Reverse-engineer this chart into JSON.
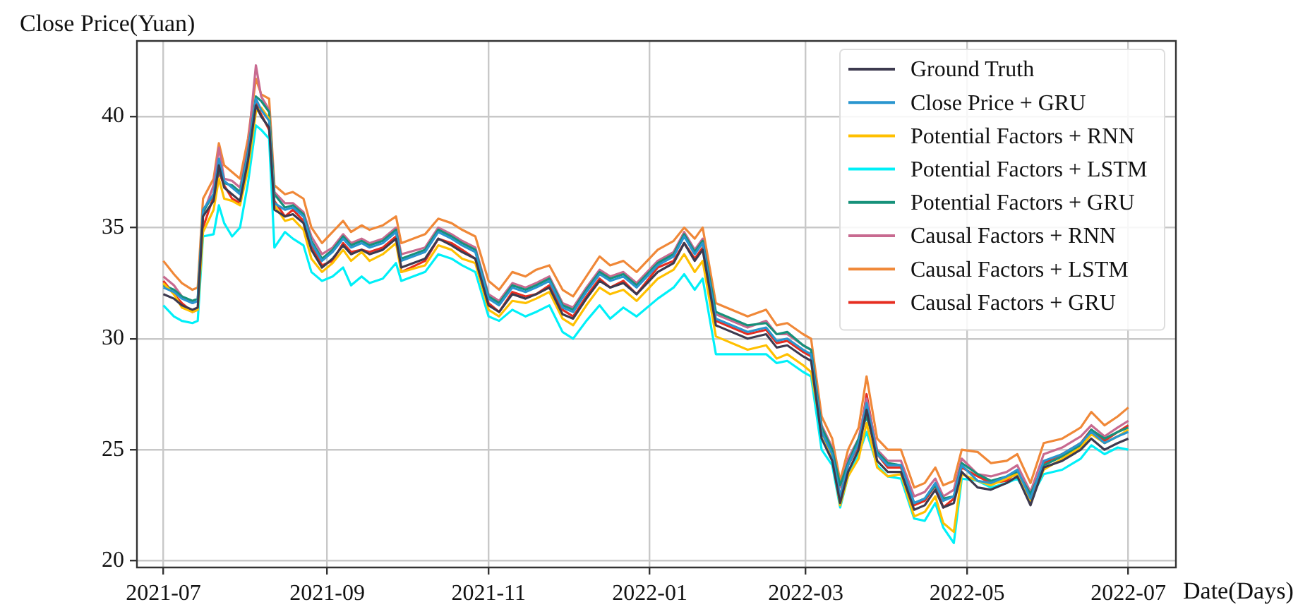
{
  "chart_data": {
    "type": "line",
    "xlabel": "Date(Days)",
    "ylabel": "Close Price(Yuan)",
    "x": [
      "2021-07-01",
      "2021-07-05",
      "2021-07-08",
      "2021-07-12",
      "2021-07-14",
      "2021-07-16",
      "2021-07-20",
      "2021-07-22",
      "2021-07-24",
      "2021-07-27",
      "2021-07-30",
      "2021-08-02",
      "2021-08-05",
      "2021-08-07",
      "2021-08-10",
      "2021-08-12",
      "2021-08-16",
      "2021-08-19",
      "2021-08-23",
      "2021-08-26",
      "2021-08-30",
      "2021-09-03",
      "2021-09-07",
      "2021-09-10",
      "2021-09-14",
      "2021-09-17",
      "2021-09-22",
      "2021-09-27",
      "2021-09-29",
      "2021-10-08",
      "2021-10-13",
      "2021-10-18",
      "2021-10-22",
      "2021-10-27",
      "2021-11-01",
      "2021-11-05",
      "2021-11-10",
      "2021-11-15",
      "2021-11-19",
      "2021-11-24",
      "2021-11-29",
      "2021-12-03",
      "2021-12-08",
      "2021-12-13",
      "2021-12-17",
      "2021-12-22",
      "2021-12-27",
      "2022-01-04",
      "2022-01-10",
      "2022-01-14",
      "2022-01-18",
      "2022-01-21",
      "2022-01-26",
      "2022-02-07",
      "2022-02-14",
      "2022-02-18",
      "2022-02-22",
      "2022-02-28",
      "2022-03-03",
      "2022-03-07",
      "2022-03-11",
      "2022-03-14",
      "2022-03-17",
      "2022-03-21",
      "2022-03-24",
      "2022-03-28",
      "2022-04-01",
      "2022-04-06",
      "2022-04-11",
      "2022-04-15",
      "2022-04-19",
      "2022-04-22",
      "2022-04-26",
      "2022-04-29",
      "2022-05-05",
      "2022-05-10",
      "2022-05-16",
      "2022-05-20",
      "2022-05-25",
      "2022-05-30",
      "2022-06-06",
      "2022-06-13",
      "2022-06-17",
      "2022-06-22",
      "2022-06-27",
      "2022-07-01"
    ],
    "series": [
      {
        "name": "Ground Truth",
        "color": "#3d3a4f",
        "values": [
          32.0,
          31.8,
          31.5,
          31.3,
          31.4,
          35.5,
          36.2,
          37.8,
          36.8,
          36.5,
          36.2,
          38.0,
          40.5,
          40.0,
          39.5,
          35.8,
          35.5,
          35.6,
          35.2,
          34.0,
          33.2,
          33.6,
          34.2,
          33.8,
          34.0,
          33.8,
          34.0,
          34.5,
          33.2,
          33.6,
          34.5,
          34.2,
          33.9,
          33.6,
          31.5,
          31.2,
          32.0,
          31.8,
          32.0,
          32.3,
          31.1,
          30.9,
          31.8,
          32.6,
          32.3,
          32.5,
          32.0,
          33.0,
          33.4,
          34.3,
          33.5,
          34.0,
          30.6,
          30.0,
          30.2,
          29.6,
          29.7,
          29.2,
          29.0,
          25.5,
          24.5,
          22.6,
          24.0,
          25.0,
          26.8,
          24.5,
          24.0,
          24.0,
          22.3,
          22.5,
          23.2,
          22.4,
          22.6,
          24.0,
          23.3,
          23.2,
          23.5,
          23.8,
          22.5,
          24.2,
          24.5,
          25.0,
          25.5,
          25.0,
          25.3,
          25.5
        ]
      },
      {
        "name": "Close Price + GRU",
        "color": "#2a96cf",
        "values": [
          32.3,
          32.1,
          31.8,
          31.6,
          31.7,
          35.8,
          36.5,
          38.1,
          37.1,
          36.8,
          36.5,
          38.3,
          40.8,
          40.3,
          39.8,
          36.1,
          35.8,
          35.9,
          35.5,
          34.3,
          33.5,
          33.9,
          34.5,
          34.1,
          34.3,
          34.1,
          34.3,
          34.8,
          33.5,
          33.9,
          34.8,
          34.5,
          34.2,
          33.9,
          31.8,
          31.5,
          32.3,
          32.1,
          32.3,
          32.6,
          31.4,
          31.2,
          32.1,
          32.9,
          32.6,
          32.8,
          32.3,
          33.3,
          33.7,
          34.6,
          33.8,
          34.3,
          30.9,
          30.3,
          30.5,
          29.9,
          30.0,
          29.5,
          29.3,
          25.8,
          24.8,
          22.9,
          24.3,
          25.3,
          27.1,
          24.8,
          24.3,
          24.3,
          22.6,
          22.8,
          23.5,
          22.7,
          22.9,
          24.3,
          23.6,
          23.5,
          23.8,
          24.1,
          22.8,
          24.5,
          24.8,
          25.3,
          25.8,
          25.3,
          25.6,
          25.8
        ]
      },
      {
        "name": "Potential Factors + RNN",
        "color": "#ffc000",
        "values": [
          32.5,
          32.0,
          31.4,
          31.2,
          31.3,
          34.8,
          35.8,
          37.2,
          36.3,
          36.2,
          36.0,
          37.6,
          40.2,
          40.4,
          39.9,
          36.0,
          35.3,
          35.4,
          34.9,
          33.6,
          33.0,
          33.4,
          34.0,
          33.5,
          33.9,
          33.5,
          33.8,
          34.3,
          33.0,
          33.3,
          34.2,
          34.0,
          33.6,
          33.4,
          31.3,
          31.0,
          31.7,
          31.6,
          31.8,
          32.1,
          30.9,
          30.6,
          31.5,
          32.3,
          32.0,
          32.2,
          31.7,
          32.7,
          33.1,
          33.8,
          33.0,
          33.5,
          30.1,
          29.5,
          29.7,
          29.1,
          29.3,
          28.8,
          28.5,
          25.8,
          24.6,
          22.5,
          23.8,
          24.6,
          26.2,
          24.2,
          23.8,
          23.9,
          22.0,
          22.2,
          22.9,
          21.7,
          21.3,
          23.9,
          23.6,
          23.4,
          23.7,
          23.9,
          22.7,
          24.1,
          24.6,
          25.1,
          25.7,
          25.3,
          25.6,
          25.9
        ]
      },
      {
        "name": "Potential Factors + LSTM",
        "color": "#00f0f8",
        "values": [
          31.5,
          31.0,
          30.8,
          30.7,
          30.8,
          34.6,
          34.7,
          36.0,
          35.2,
          34.6,
          35.0,
          37.0,
          39.6,
          39.4,
          39.0,
          34.1,
          34.8,
          34.5,
          34.2,
          33.0,
          32.6,
          32.8,
          33.2,
          32.4,
          32.8,
          32.5,
          32.7,
          33.4,
          32.6,
          33.0,
          33.8,
          33.6,
          33.3,
          33.0,
          31.0,
          30.8,
          31.3,
          31.0,
          31.2,
          31.5,
          30.3,
          30.0,
          30.8,
          31.5,
          30.9,
          31.4,
          31.0,
          31.8,
          32.3,
          32.9,
          32.2,
          32.7,
          29.3,
          29.3,
          29.3,
          28.9,
          29.0,
          28.5,
          28.3,
          25.0,
          24.3,
          22.4,
          23.8,
          24.8,
          25.8,
          24.3,
          23.8,
          23.7,
          21.9,
          21.8,
          22.6,
          21.5,
          20.8,
          23.7,
          23.6,
          23.3,
          23.5,
          23.7,
          22.8,
          23.9,
          24.1,
          24.6,
          25.2,
          24.8,
          25.1,
          25.0
        ]
      },
      {
        "name": "Potential Factors + GRU",
        "color": "#16917a",
        "values": [
          32.4,
          32.2,
          31.9,
          31.7,
          31.8,
          35.7,
          36.5,
          37.6,
          37.0,
          36.9,
          36.6,
          38.4,
          40.9,
          40.7,
          40.2,
          36.5,
          35.9,
          36.0,
          35.6,
          34.4,
          33.6,
          34.0,
          34.6,
          34.2,
          34.4,
          34.2,
          34.4,
          34.9,
          33.6,
          34.0,
          34.9,
          34.6,
          34.3,
          34.0,
          31.9,
          31.6,
          32.4,
          32.2,
          32.4,
          32.7,
          31.5,
          31.3,
          32.2,
          33.0,
          32.7,
          32.9,
          32.4,
          33.4,
          33.8,
          34.7,
          33.9,
          34.4,
          31.2,
          30.6,
          30.7,
          30.2,
          30.3,
          29.7,
          29.5,
          26.0,
          25.0,
          23.4,
          24.4,
          25.5,
          26.5,
          24.9,
          24.4,
          24.3,
          22.6,
          22.8,
          23.4,
          22.8,
          22.9,
          24.4,
          23.9,
          23.6,
          23.8,
          24.0,
          23.0,
          24.3,
          24.7,
          25.2,
          25.9,
          25.5,
          25.8,
          26.0
        ]
      },
      {
        "name": "Causal Factors + RNN",
        "color": "#c86a90",
        "values": [
          32.8,
          32.4,
          31.9,
          31.6,
          31.7,
          35.6,
          36.9,
          38.6,
          37.2,
          37.1,
          36.8,
          38.6,
          42.3,
          40.9,
          40.3,
          36.6,
          36.1,
          36.1,
          35.7,
          34.6,
          33.8,
          34.1,
          34.7,
          34.3,
          34.5,
          34.3,
          34.5,
          35.0,
          33.8,
          34.1,
          35.0,
          34.7,
          34.4,
          34.1,
          32.0,
          31.7,
          32.5,
          32.3,
          32.5,
          32.8,
          31.6,
          31.4,
          32.3,
          33.1,
          32.8,
          33.0,
          32.5,
          33.5,
          33.9,
          34.8,
          34.0,
          34.5,
          31.1,
          30.5,
          30.8,
          30.2,
          30.2,
          29.7,
          29.5,
          26.1,
          25.1,
          23.3,
          24.6,
          25.5,
          27.3,
          25.0,
          24.5,
          24.5,
          22.9,
          23.1,
          23.7,
          22.9,
          23.2,
          24.6,
          23.9,
          23.8,
          24.0,
          24.3,
          23.1,
          24.8,
          25.1,
          25.6,
          26.1,
          25.6,
          26.0,
          26.3
        ]
      },
      {
        "name": "Causal Factors + LSTM",
        "color": "#f08838",
        "values": [
          33.5,
          32.9,
          32.5,
          32.2,
          32.3,
          36.3,
          37.2,
          38.8,
          37.8,
          37.5,
          37.2,
          39.0,
          41.7,
          41.0,
          40.8,
          36.9,
          36.5,
          36.6,
          36.3,
          35.0,
          34.3,
          34.8,
          35.3,
          34.8,
          35.1,
          34.9,
          35.1,
          35.5,
          34.3,
          34.7,
          35.4,
          35.2,
          34.9,
          34.6,
          32.6,
          32.2,
          33.0,
          32.8,
          33.1,
          33.3,
          32.2,
          31.9,
          32.8,
          33.7,
          33.3,
          33.5,
          33.0,
          34.0,
          34.4,
          35.0,
          34.5,
          35.0,
          31.6,
          31.0,
          31.3,
          30.6,
          30.7,
          30.2,
          30.0,
          26.5,
          25.5,
          23.6,
          25.0,
          26.0,
          28.3,
          25.5,
          25.0,
          25.0,
          23.3,
          23.5,
          24.2,
          23.4,
          23.6,
          25.0,
          24.9,
          24.4,
          24.5,
          24.8,
          23.5,
          25.3,
          25.5,
          26.0,
          26.7,
          26.1,
          26.5,
          26.9
        ]
      },
      {
        "name": "Causal Factors + GRU",
        "color": "#e62d20",
        "values": [
          32.6,
          32.0,
          31.6,
          31.2,
          31.3,
          35.0,
          36.4,
          37.5,
          36.9,
          36.3,
          36.1,
          37.8,
          40.6,
          40.1,
          39.4,
          36.2,
          35.5,
          35.8,
          35.3,
          34.2,
          33.3,
          33.5,
          34.3,
          33.9,
          34.0,
          33.9,
          34.1,
          34.6,
          33.0,
          33.5,
          34.5,
          34.3,
          34.0,
          33.6,
          31.6,
          31.2,
          32.1,
          31.9,
          32.0,
          32.4,
          31.3,
          31.0,
          31.9,
          32.7,
          32.3,
          32.6,
          32.0,
          33.2,
          33.5,
          34.3,
          33.6,
          34.1,
          30.8,
          30.2,
          30.4,
          29.8,
          29.9,
          29.4,
          29.2,
          25.9,
          24.9,
          22.9,
          24.3,
          25.2,
          27.5,
          24.8,
          24.2,
          24.2,
          22.5,
          22.7,
          23.4,
          22.4,
          22.8,
          24.2,
          23.8,
          23.5,
          23.6,
          24.0,
          22.9,
          24.4,
          24.8,
          25.3,
          25.9,
          25.4,
          25.8,
          26.1
        ]
      }
    ],
    "xlim": [
      "2021-06-21",
      "2022-07-19"
    ],
    "xticks": [
      {
        "value": "2021-07-01",
        "label": "2021-07"
      },
      {
        "value": "2021-09-01",
        "label": "2021-09"
      },
      {
        "value": "2021-11-01",
        "label": "2021-11"
      },
      {
        "value": "2022-01-01",
        "label": "2022-01"
      },
      {
        "value": "2022-03-01",
        "label": "2022-03"
      },
      {
        "value": "2022-05-01",
        "label": "2022-05"
      },
      {
        "value": "2022-07-01",
        "label": "2022-07"
      }
    ],
    "ylim": [
      19.7,
      43.4
    ],
    "yticks": [
      20,
      25,
      30,
      35,
      40
    ],
    "grid": true,
    "legend": "top right",
    "marker": "none",
    "line_style": "solid"
  }
}
